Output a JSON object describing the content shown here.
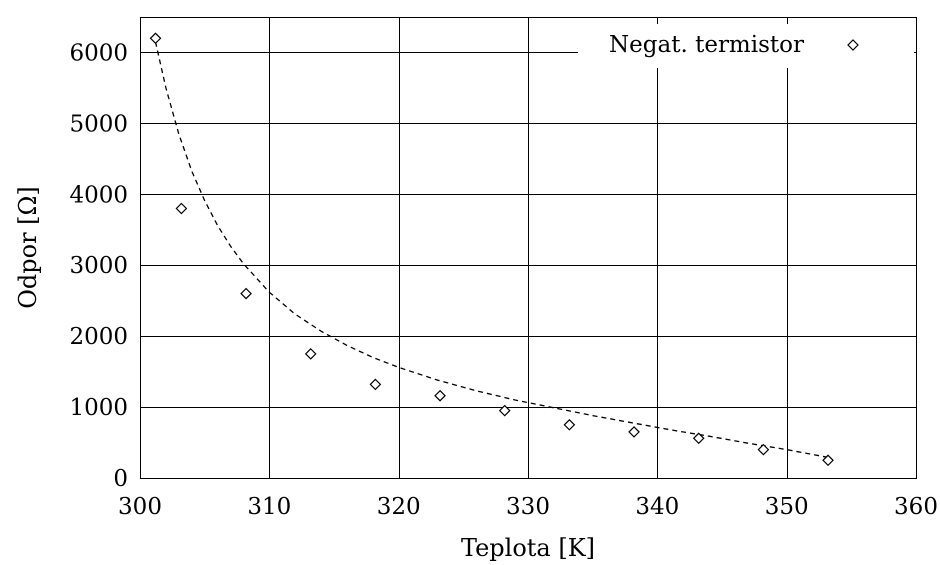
{
  "chart_data": {
    "type": "scatter",
    "xlabel": "Teplota [K]",
    "ylabel": "Odpor [Ω]",
    "xlim": [
      300,
      360
    ],
    "ylim": [
      0,
      6500
    ],
    "xticks": [
      300,
      310,
      320,
      330,
      340,
      350,
      360
    ],
    "yticks": [
      0,
      1000,
      2000,
      3000,
      4000,
      5000,
      6000
    ],
    "grid": true,
    "legend_position": "top-right",
    "series": [
      {
        "name": "Negat. termistor",
        "marker": "diamond",
        "x": [
          301.2,
          303.2,
          308.2,
          313.2,
          318.2,
          323.2,
          328.2,
          333.2,
          338.2,
          343.2,
          348.2,
          353.2
        ],
        "y": [
          6200,
          3800,
          2600,
          1750,
          1320,
          1160,
          950,
          750,
          650,
          560,
          400,
          250
        ]
      }
    ],
    "fit_curve": {
      "style": "dashed",
      "x": [
        301.2,
        302.0,
        303.0,
        304.0,
        305.0,
        306.0,
        307.0,
        308.0,
        310.0,
        312.0,
        314.0,
        316.0,
        318.0,
        320.0,
        323.0,
        326.0,
        329.0,
        332.0,
        335.0,
        338.0,
        341.0,
        344.0,
        347.0,
        350.0,
        353.2
      ],
      "y": [
        6150,
        5500,
        4850,
        4330,
        3910,
        3560,
        3270,
        3020,
        2620,
        2310,
        2070,
        1870,
        1700,
        1560,
        1380,
        1230,
        1100,
        990,
        880,
        780,
        680,
        590,
        490,
        400,
        290
      ]
    }
  }
}
